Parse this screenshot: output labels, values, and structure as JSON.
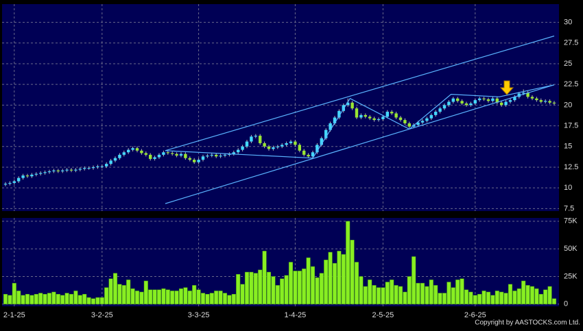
{
  "chart_data": {
    "type": "candlestick",
    "categories": [
      null,
      null,
      "2-1-25",
      null,
      null,
      null,
      null,
      null,
      null,
      null,
      null,
      null,
      null,
      null,
      null,
      null,
      null,
      null,
      null,
      null,
      null,
      null,
      "3-2-25",
      null,
      null,
      null,
      null,
      null,
      null,
      null,
      null,
      null,
      null,
      null,
      null,
      null,
      null,
      null,
      null,
      null,
      null,
      null,
      null,
      null,
      "3-3-25",
      null,
      null,
      null,
      null,
      null,
      null,
      null,
      null,
      null,
      null,
      null,
      null,
      null,
      null,
      null,
      null,
      null,
      null,
      null,
      null,
      null,
      "1-4-25",
      null,
      null,
      null,
      null,
      null,
      null,
      null,
      null,
      null,
      null,
      null,
      null,
      null,
      null,
      null,
      null,
      null,
      null,
      null,
      "2-5-25",
      null,
      null,
      null,
      null,
      null,
      null,
      null,
      null,
      null,
      null,
      null,
      null,
      null,
      null,
      null,
      null,
      null,
      null,
      null,
      null,
      "2-6-25",
      null,
      null,
      null,
      null,
      null,
      null,
      null,
      null,
      null,
      null,
      null,
      null,
      null,
      null,
      null,
      null,
      null,
      null
    ],
    "open": [
      10.4,
      10.5,
      10.6,
      10.8,
      11.2,
      11.5,
      11.4,
      11.6,
      11.7,
      11.8,
      11.9,
      12.0,
      12.1,
      12.0,
      12.1,
      12.2,
      12.1,
      12.2,
      12.3,
      12.4,
      12.4,
      12.5,
      12.6,
      12.6,
      12.9,
      13.3,
      13.6,
      14.0,
      14.3,
      14.6,
      14.8,
      14.5,
      14.2,
      14.0,
      13.5,
      13.7,
      14.0,
      14.3,
      14.2,
      14.1,
      13.9,
      14.1,
      13.6,
      13.4,
      13.1,
      13.4,
      13.8,
      13.9,
      14.0,
      13.8,
      13.9,
      14.0,
      14.1,
      14.3,
      14.6,
      15.0,
      15.6,
      16.2,
      16.3,
      15.4,
      15.0,
      14.7,
      14.9,
      15.0,
      15.2,
      15.4,
      15.6,
      15.2,
      14.5,
      14.0,
      13.8,
      14.3,
      15.2,
      16.0,
      17.0,
      17.8,
      18.5,
      19.3,
      20.0,
      20.3,
      19.6,
      18.5,
      18.8,
      18.6,
      18.4,
      18.2,
      18.3,
      18.6,
      19.2,
      19.0,
      18.5,
      18.2,
      17.8,
      17.4,
      17.6,
      17.9,
      18.1,
      18.4,
      18.8,
      19.2,
      19.6,
      20.0,
      20.4,
      20.8,
      20.5,
      20.2,
      20.0,
      20.2,
      20.6,
      20.8,
      20.7,
      20.5,
      20.8,
      20.3,
      20.0,
      20.4,
      20.6,
      21.0,
      21.4,
      21.5,
      21.0,
      20.8,
      20.6,
      20.4,
      20.5,
      20.3
    ],
    "high": [
      10.7,
      10.8,
      11.0,
      11.4,
      11.7,
      11.7,
      11.8,
      11.9,
      12.0,
      12.1,
      12.2,
      12.3,
      12.3,
      12.3,
      12.4,
      12.4,
      12.4,
      12.5,
      12.6,
      12.6,
      12.7,
      12.8,
      12.8,
      13.1,
      13.5,
      13.8,
      14.2,
      14.5,
      14.8,
      15.0,
      15.0,
      14.7,
      14.4,
      14.2,
      13.9,
      14.2,
      14.5,
      14.5,
      14.4,
      14.3,
      14.3,
      14.3,
      13.8,
      13.6,
      13.6,
      14.0,
      14.1,
      14.2,
      14.2,
      14.1,
      14.2,
      14.3,
      14.5,
      14.8,
      15.2,
      15.8,
      16.4,
      16.5,
      16.5,
      15.6,
      15.2,
      15.1,
      15.2,
      15.4,
      15.6,
      15.8,
      15.8,
      15.4,
      14.7,
      14.2,
      14.5,
      15.4,
      16.2,
      17.2,
      18.0,
      18.7,
      19.5,
      20.2,
      20.8,
      20.5,
      19.8,
      19.0,
      19.0,
      18.8,
      18.6,
      18.5,
      18.8,
      19.4,
      19.4,
      19.2,
      18.7,
      18.4,
      18.0,
      17.8,
      18.1,
      18.3,
      18.6,
      19.0,
      19.4,
      19.8,
      20.2,
      20.6,
      21.0,
      21.0,
      20.7,
      20.4,
      20.4,
      20.8,
      21.0,
      21.0,
      20.9,
      21.0,
      21.0,
      20.5,
      20.6,
      20.8,
      21.2,
      21.6,
      21.9,
      21.7,
      21.2,
      21.0,
      20.8,
      20.7,
      20.7,
      20.5
    ],
    "low": [
      10.2,
      10.3,
      10.4,
      10.6,
      11.0,
      11.2,
      11.2,
      11.4,
      11.5,
      11.6,
      11.7,
      11.8,
      11.8,
      11.8,
      11.9,
      11.9,
      11.9,
      12.0,
      12.1,
      12.2,
      12.2,
      12.3,
      12.4,
      12.4,
      12.7,
      13.1,
      13.4,
      13.8,
      14.1,
      14.4,
      14.3,
      14.0,
      13.8,
      13.3,
      13.3,
      13.5,
      13.8,
      14.0,
      13.9,
      13.7,
      13.7,
      13.4,
      13.2,
      12.9,
      12.9,
      13.2,
      13.6,
      13.7,
      13.6,
      13.6,
      13.7,
      13.8,
      13.9,
      14.1,
      14.4,
      14.8,
      15.4,
      16.0,
      15.2,
      14.8,
      14.5,
      14.5,
      14.7,
      14.8,
      15.0,
      15.2,
      15.0,
      14.3,
      13.8,
      13.6,
      13.6,
      14.1,
      15.0,
      15.8,
      16.8,
      17.6,
      18.3,
      19.1,
      19.8,
      19.4,
      18.3,
      18.3,
      18.4,
      18.2,
      18.0,
      18.0,
      18.1,
      18.4,
      18.8,
      18.3,
      18.0,
      17.6,
      17.2,
      17.2,
      17.4,
      17.7,
      17.9,
      18.2,
      18.6,
      19.0,
      19.4,
      19.8,
      20.2,
      20.3,
      20.0,
      19.8,
      19.8,
      20.0,
      20.4,
      20.5,
      20.3,
      20.3,
      20.1,
      19.8,
      19.8,
      20.2,
      20.4,
      20.8,
      21.2,
      20.8,
      20.6,
      20.4,
      20.2,
      20.2,
      20.1,
      20.0
    ],
    "close": [
      10.5,
      10.6,
      10.8,
      11.2,
      11.5,
      11.4,
      11.6,
      11.7,
      11.8,
      11.9,
      12.0,
      12.1,
      12.0,
      12.1,
      12.2,
      12.1,
      12.2,
      12.3,
      12.4,
      12.4,
      12.5,
      12.6,
      12.6,
      12.9,
      13.3,
      13.6,
      14.0,
      14.3,
      14.6,
      14.8,
      14.5,
      14.2,
      14.0,
      13.5,
      13.7,
      14.0,
      14.3,
      14.2,
      14.1,
      13.9,
      14.1,
      13.6,
      13.4,
      13.1,
      13.4,
      13.8,
      13.9,
      14.0,
      13.8,
      13.9,
      14.0,
      14.1,
      14.3,
      14.6,
      15.0,
      15.6,
      16.2,
      16.3,
      15.4,
      15.0,
      14.7,
      14.9,
      15.0,
      15.2,
      15.4,
      15.6,
      15.2,
      14.5,
      14.0,
      13.8,
      14.3,
      15.2,
      16.0,
      17.0,
      17.8,
      18.5,
      19.3,
      20.0,
      20.3,
      19.6,
      18.5,
      18.8,
      18.6,
      18.4,
      18.2,
      18.3,
      18.6,
      19.2,
      19.0,
      18.5,
      18.2,
      17.8,
      17.4,
      17.6,
      17.9,
      18.1,
      18.4,
      18.8,
      19.2,
      19.6,
      20.0,
      20.4,
      20.8,
      20.5,
      20.2,
      20.0,
      20.2,
      20.6,
      20.8,
      20.7,
      20.5,
      20.8,
      20.3,
      20.0,
      20.4,
      20.6,
      21.0,
      21.4,
      21.5,
      21.0,
      20.8,
      20.6,
      20.4,
      20.5,
      20.3,
      20.2
    ],
    "up_color": "#44d8ff",
    "down_color": "#99e633",
    "ylim": [
      7.2,
      32.2
    ],
    "yticks": [
      7.5,
      10,
      12.5,
      15,
      17.5,
      20,
      22.5,
      25,
      27.5,
      30
    ],
    "grid": true,
    "trendlines": [
      {
        "x": [
          36.4,
          125
        ],
        "y": [
          14.5,
          28.35
        ]
      },
      {
        "x": [
          36.4,
          125
        ],
        "y": [
          8.1,
          22.45
        ]
      },
      {
        "x": [
          36.4,
          70,
          78.5,
          92,
          101.5,
          112.5,
          125
        ],
        "y": [
          14.5,
          13.6,
          20.8,
          17.1,
          21.3,
          21.0,
          22.45
        ]
      }
    ],
    "trendline_color": "#5ab4ff",
    "volume": {
      "type": "bar",
      "color": "#88ee22",
      "values": [
        9000,
        8000,
        19000,
        12000,
        8000,
        9000,
        8000,
        9000,
        10000,
        9000,
        10000,
        11000,
        9000,
        8000,
        10000,
        9000,
        12000,
        8000,
        9000,
        6000,
        5000,
        6000,
        6000,
        15000,
        23000,
        28000,
        18000,
        17000,
        22000,
        14000,
        12000,
        11000,
        21000,
        13000,
        13000,
        13000,
        14000,
        13000,
        12000,
        12000,
        14000,
        15000,
        12000,
        17000,
        13000,
        10000,
        9000,
        10000,
        12000,
        12000,
        10000,
        8000,
        9000,
        27000,
        18000,
        29000,
        29000,
        28000,
        31000,
        48000,
        29000,
        25000,
        17000,
        23000,
        26000,
        38000,
        30000,
        30000,
        32000,
        42000,
        34000,
        24000,
        28000,
        40000,
        47000,
        37000,
        48000,
        45000,
        75000,
        58000,
        38000,
        25000,
        16000,
        22000,
        17000,
        15000,
        15000,
        20000,
        22000,
        17000,
        16000,
        11000,
        25000,
        43000,
        19000,
        19000,
        16000,
        22000,
        17000,
        10000,
        10000,
        20000,
        15000,
        22000,
        23000,
        13000,
        11000,
        8000,
        9000,
        12000,
        11000,
        8000,
        12000,
        11000,
        10000,
        18000,
        12000,
        14000,
        21000,
        17000,
        16000,
        14000,
        9000,
        13000,
        16000,
        5000
      ],
      "ylim": [
        -2000,
        78000
      ],
      "yticks": [
        0,
        {
          "value": 25000,
          "label": "25K"
        },
        {
          "value": 50000,
          "label": "50K"
        },
        {
          "value": 75000,
          "label": "75K"
        }
      ]
    },
    "copyright": "Copyright by AASTOCKS.com Ltd."
  }
}
